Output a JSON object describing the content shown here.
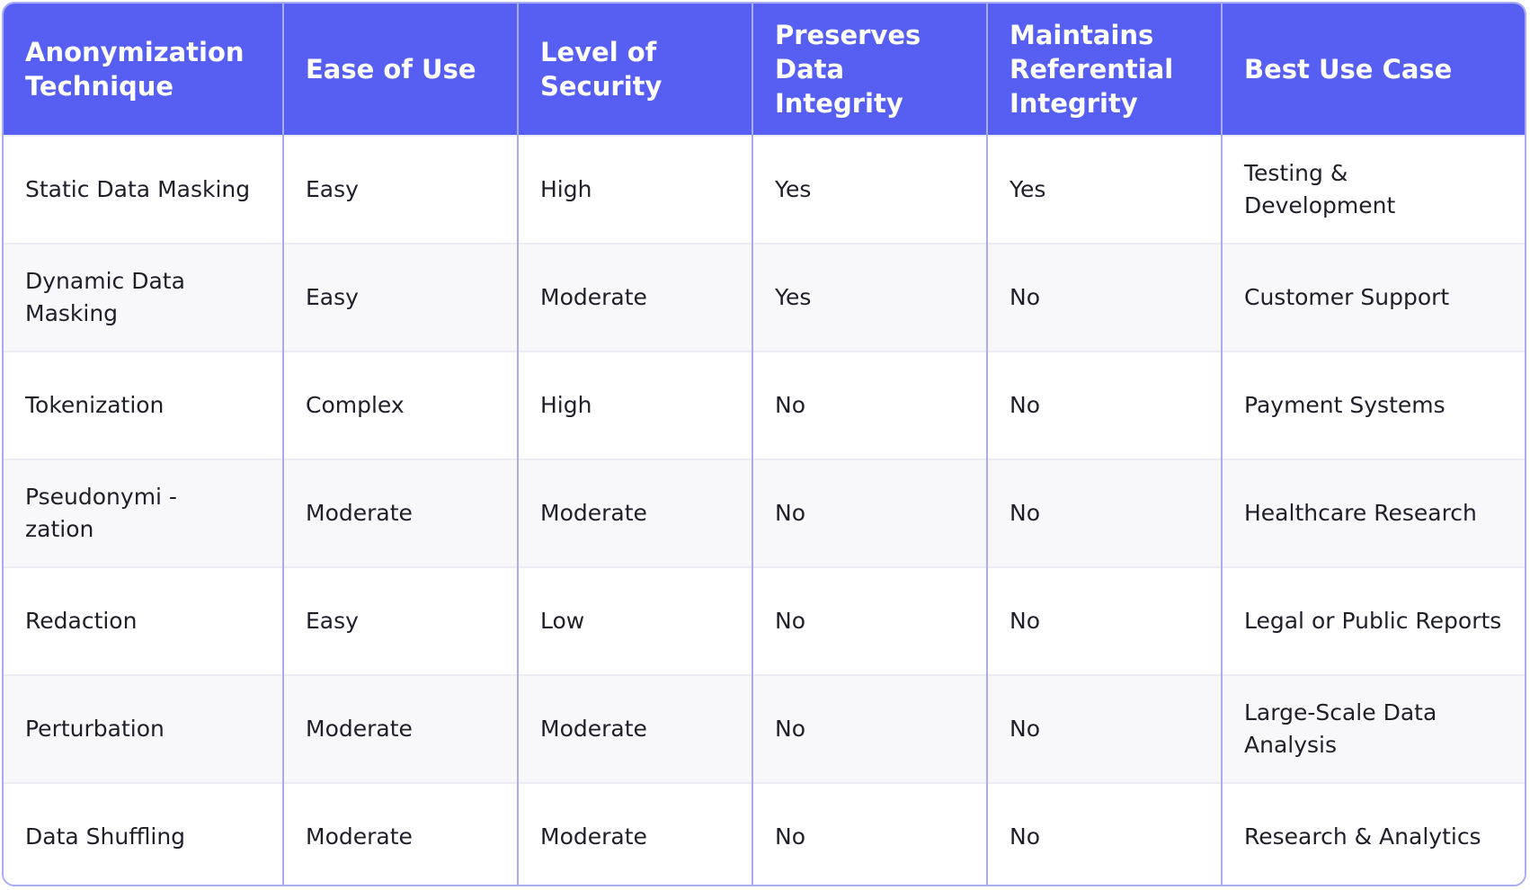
{
  "table": {
    "header": [
      "Anonymization Technique",
      "Ease of Use",
      "Level of Security",
      "Preserves Data Integrity",
      "Maintains Referential Integrity",
      "Best Use Case"
    ],
    "rows": [
      [
        "Static Data Masking",
        "Easy",
        "High",
        "Yes",
        "Yes",
        "Testing & Development"
      ],
      [
        "Dynamic Data Masking",
        "Easy",
        "Moderate",
        "Yes",
        "No",
        "Customer Support"
      ],
      [
        "Tokenization",
        "Complex",
        "High",
        "No",
        "No",
        "Payment Systems"
      ],
      [
        "Pseudonymi -\nzation",
        "Moderate",
        "Moderate",
        "No",
        "No",
        "Healthcare Research"
      ],
      [
        "Redaction",
        "Easy",
        "Low",
        "No",
        "No",
        "Legal or Public Reports"
      ],
      [
        "Perturbation",
        "Moderate",
        "Moderate",
        "No",
        "No",
        "Large-Scale Data Analysis"
      ],
      [
        "Data Shuffling",
        "Moderate",
        "Moderate",
        "No",
        "No",
        "Research & Analytics"
      ]
    ]
  }
}
